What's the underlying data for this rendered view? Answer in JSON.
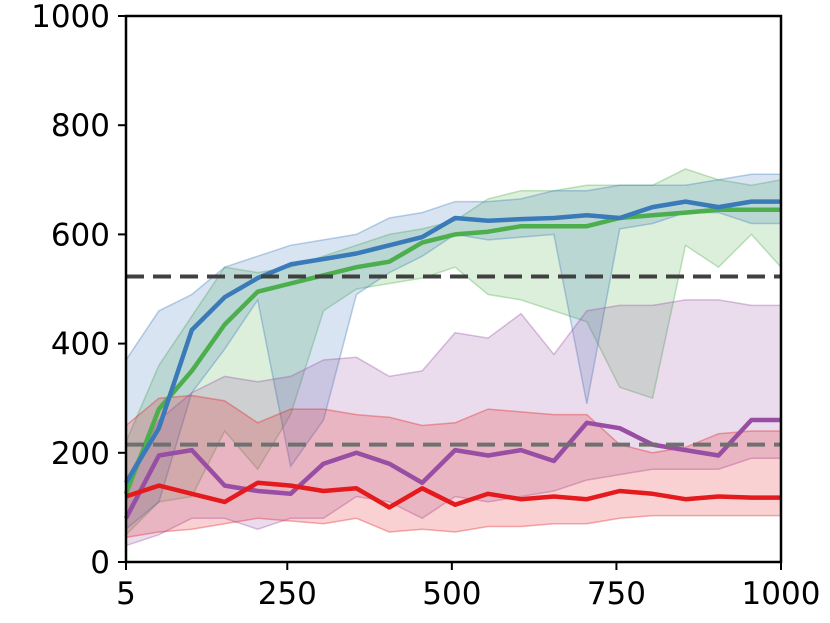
{
  "chart_data": {
    "type": "line",
    "title": "",
    "xlabel": "",
    "ylabel": "",
    "xlim": [
      5,
      1000
    ],
    "ylim": [
      0,
      1000
    ],
    "x_ticks": [
      5,
      250,
      500,
      750,
      1000
    ],
    "x_tick_labels": [
      "5",
      "250",
      "500",
      "750",
      "1000"
    ],
    "y_ticks": [
      0,
      200,
      400,
      600,
      800,
      1000
    ],
    "y_tick_labels": [
      "0",
      "200",
      "400",
      "600",
      "800",
      "1000"
    ],
    "grid": false,
    "legend": "none",
    "x": [
      5,
      55,
      105,
      155,
      205,
      255,
      305,
      355,
      405,
      455,
      505,
      555,
      605,
      655,
      705,
      755,
      805,
      855,
      905,
      955,
      1000
    ],
    "reference_lines": [
      {
        "y": 523,
        "color": "#404040",
        "style": "dashed"
      },
      {
        "y": 215,
        "color": "#707070",
        "style": "dashed"
      }
    ],
    "series": [
      {
        "color": "#4cae4c",
        "values": [
          125,
          280,
          350,
          435,
          495,
          510,
          525,
          540,
          550,
          585,
          600,
          605,
          615,
          615,
          615,
          630,
          635,
          640,
          645,
          645,
          645
        ],
        "upper": [
          220,
          360,
          450,
          540,
          530,
          540,
          560,
          580,
          600,
          610,
          625,
          665,
          680,
          680,
          690,
          690,
          690,
          720,
          700,
          690,
          700
        ],
        "lower": [
          50,
          110,
          120,
          240,
          170,
          270,
          460,
          500,
          510,
          520,
          540,
          490,
          480,
          460,
          440,
          320,
          300,
          580,
          540,
          600,
          540
        ]
      },
      {
        "color": "#3a7ab8",
        "values": [
          145,
          245,
          425,
          485,
          520,
          545,
          555,
          565,
          580,
          595,
          630,
          625,
          628,
          630,
          635,
          630,
          650,
          660,
          650,
          660,
          660
        ],
        "upper": [
          370,
          460,
          490,
          540,
          560,
          580,
          590,
          600,
          630,
          640,
          660,
          660,
          665,
          680,
          680,
          690,
          690,
          690,
          700,
          710,
          710
        ],
        "lower": [
          60,
          110,
          310,
          390,
          480,
          175,
          260,
          490,
          530,
          560,
          600,
          590,
          595,
          600,
          290,
          610,
          620,
          640,
          640,
          620,
          620
        ]
      },
      {
        "color": "#984ea3",
        "values": [
          80,
          195,
          205,
          140,
          130,
          125,
          180,
          200,
          180,
          145,
          205,
          195,
          205,
          185,
          255,
          245,
          215,
          205,
          195,
          260,
          260
        ],
        "upper": [
          150,
          260,
          310,
          340,
          330,
          340,
          370,
          375,
          340,
          350,
          420,
          410,
          455,
          380,
          460,
          470,
          470,
          480,
          480,
          470,
          470
        ],
        "lower": [
          30,
          50,
          80,
          80,
          60,
          80,
          80,
          120,
          110,
          80,
          120,
          110,
          120,
          130,
          150,
          160,
          170,
          170,
          170,
          190,
          190
        ]
      },
      {
        "color": "#e41a1c",
        "values": [
          120,
          140,
          125,
          110,
          145,
          140,
          130,
          135,
          100,
          135,
          105,
          125,
          115,
          120,
          115,
          130,
          125,
          115,
          120,
          118,
          118
        ],
        "upper": [
          250,
          300,
          305,
          295,
          255,
          280,
          280,
          270,
          265,
          250,
          255,
          280,
          275,
          270,
          270,
          215,
          200,
          210,
          235,
          240,
          240
        ],
        "lower": [
          45,
          55,
          60,
          70,
          80,
          75,
          70,
          80,
          55,
          60,
          55,
          65,
          65,
          70,
          70,
          80,
          85,
          85,
          85,
          85,
          85
        ]
      }
    ]
  }
}
